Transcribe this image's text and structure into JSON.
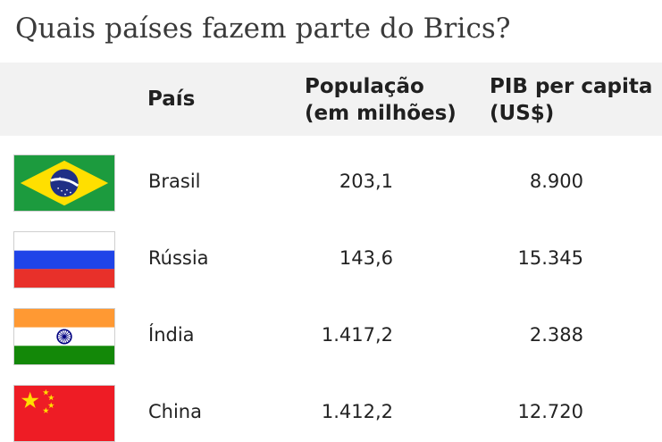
{
  "title": "Quais países fazem parte do Brics?",
  "table": {
    "headers": {
      "country": "País",
      "population_line1": "População",
      "population_line2": "(em milhões)",
      "gdp_line1": "PIB per capita",
      "gdp_line2": "(US$)"
    },
    "rows": [
      {
        "flag_icon": "brazil-flag-icon",
        "country": "Brasil",
        "population": "203,1",
        "gdp_per_capita": "8.900"
      },
      {
        "flag_icon": "russia-flag-icon",
        "country": "Rússia",
        "population": "143,6",
        "gdp_per_capita": "15.345"
      },
      {
        "flag_icon": "india-flag-icon",
        "country": "Índia",
        "population": "1.417,2",
        "gdp_per_capita": "2.388"
      },
      {
        "flag_icon": "china-flag-icon",
        "country": "China",
        "population": "1.412,2",
        "gdp_per_capita": "12.720"
      }
    ]
  },
  "colors": {
    "header_background": "#f2f2f2",
    "brazil_green": "#1c9b3e",
    "brazil_yellow": "#ffdf00",
    "brazil_blue": "#1f2f86",
    "russia_blue": "#1f44e8",
    "russia_red": "#e8302a",
    "india_saffron": "#ff9933",
    "india_green": "#138808",
    "india_navy": "#000080",
    "china_red": "#ee1c25",
    "china_yellow": "#ffde00"
  }
}
